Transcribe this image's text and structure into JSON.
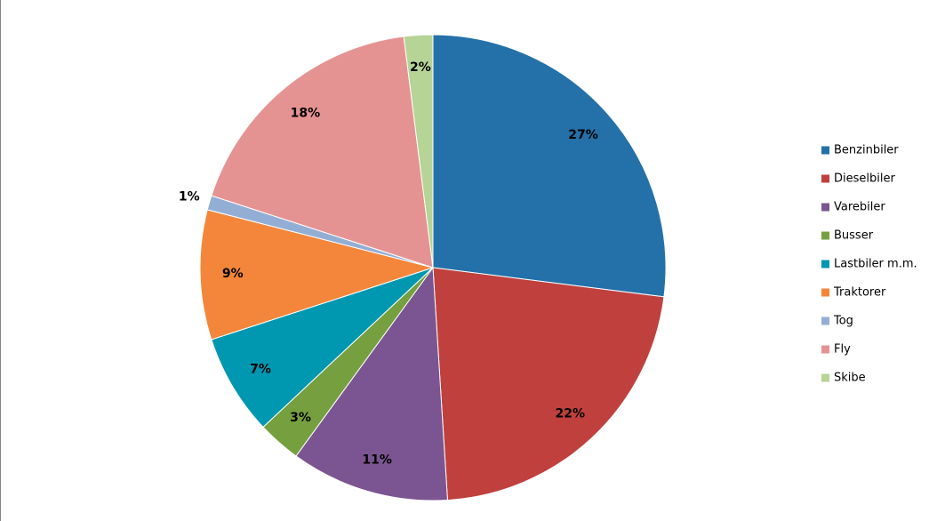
{
  "chart_data": {
    "type": "pie",
    "categories": [
      "Benzinbiler",
      "Dieselbiler",
      "Varebiler",
      "Busser",
      "Lastbiler m.m.",
      "Traktorer",
      "Tog",
      "Fly",
      "Skibe"
    ],
    "values": [
      27,
      22,
      11,
      3,
      7,
      9,
      1,
      18,
      2
    ],
    "value_labels": [
      "27%",
      "22%",
      "11%",
      "3%",
      "7%",
      "9%",
      "1%",
      "18%",
      "2%"
    ],
    "colors": [
      "#2471a9",
      "#c0403d",
      "#7b5591",
      "#76a040",
      "#0097b0",
      "#f3863a",
      "#93aed4",
      "#e59392",
      "#b6d496"
    ],
    "legend": "right"
  }
}
